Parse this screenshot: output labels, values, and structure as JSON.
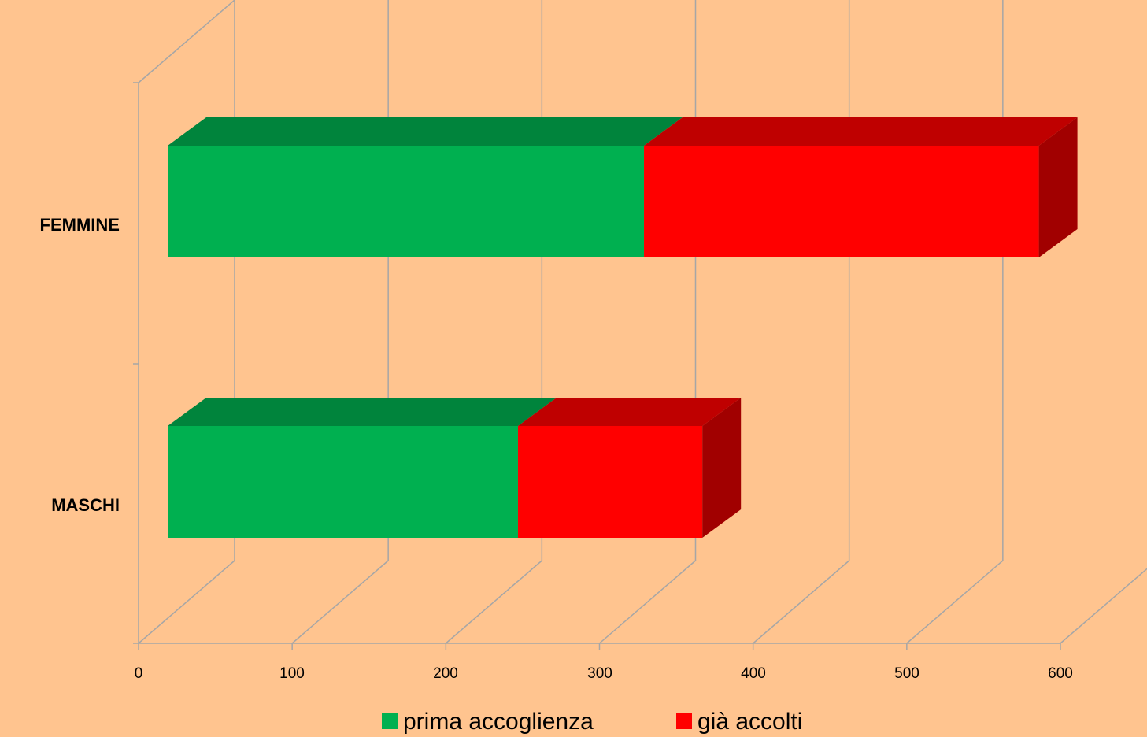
{
  "chart_data": {
    "type": "bar",
    "orientation": "horizontal",
    "stacked": true,
    "three_d": true,
    "categories": [
      "FEMMINE",
      "MASCHI"
    ],
    "series": [
      {
        "name": "prima accoglienza",
        "values": [
          310,
          228
        ],
        "color": "#00B050"
      },
      {
        "name": "già accolti",
        "values": [
          257,
          120
        ],
        "color": "#FF0000"
      }
    ],
    "x_ticks": [
      "0",
      "100",
      "200",
      "300",
      "400",
      "500",
      "600"
    ],
    "xlim": [
      0,
      600
    ],
    "grid": true,
    "legend": "bottom"
  }
}
